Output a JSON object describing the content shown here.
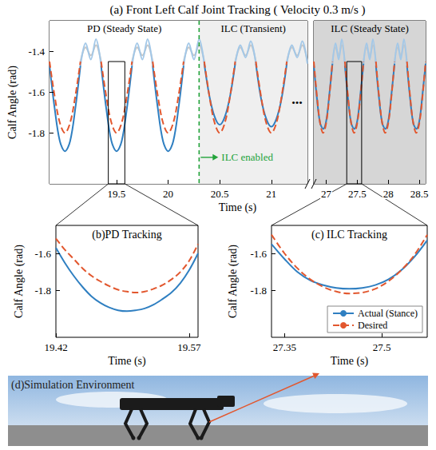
{
  "chart_data": [
    {
      "type": "line",
      "title": "(a) Front Left Calf Joint Tracking ( Velocity 0.3 m/s )",
      "x_label": "Time (s)",
      "y_label": "Calf Angle (rad)",
      "ylim": [
        -2.05,
        -1.25
      ],
      "yticks": [
        -1.8,
        -1.6,
        -1.4
      ],
      "grid": false,
      "x_segments": [
        {
          "xlim": [
            18.85,
            21.35
          ],
          "xticks": [
            19.5,
            20,
            20.5,
            21
          ],
          "x": [
            18.85,
            18.9,
            18.95,
            19,
            19.05,
            19.1,
            19.15,
            19.2,
            19.25,
            19.3,
            19.35,
            19.4,
            19.45,
            19.5,
            19.55,
            19.6,
            19.65,
            19.7,
            19.75,
            19.8,
            19.85,
            19.9,
            19.95,
            20,
            20.05,
            20.1,
            20.15,
            20.2,
            20.25,
            20.3,
            20.35,
            20.4,
            20.45,
            20.5,
            20.55,
            20.6,
            20.65,
            20.7,
            20.75,
            20.8,
            20.85,
            20.9,
            20.95,
            21,
            21.05,
            21.1,
            21.15,
            21.2,
            21.25,
            21.3,
            21.35
          ],
          "series": [
            {
              "color": "#c6c6c6",
              "line_style": "solid",
              "values": [
                null,
                null,
                null,
                null,
                null,
                null,
                -1.45,
                -1.38,
                -1.42,
                -1.37,
                -1.45,
                null,
                null,
                null,
                null,
                null,
                -1.45,
                -1.38,
                -1.42,
                -1.37,
                -1.45,
                null,
                null,
                null,
                null,
                null,
                -1.45,
                -1.38,
                -1.42,
                -1.37,
                -1.45,
                null,
                null,
                null,
                null,
                null,
                -1.45,
                -1.38,
                -1.42,
                -1.37,
                -1.45,
                null,
                null,
                null,
                null,
                null,
                -1.45,
                -1.38,
                -1.42,
                -1.37,
                -1.45
              ]
            },
            {
              "color": "#a3c8e8",
              "line_style": "solid",
              "values": [
                null,
                null,
                null,
                null,
                null,
                null,
                -1.47,
                -1.36,
                -1.44,
                -1.34,
                -1.47,
                null,
                null,
                null,
                null,
                null,
                -1.47,
                -1.36,
                -1.44,
                -1.34,
                -1.47,
                null,
                null,
                null,
                null,
                null,
                -1.47,
                -1.36,
                -1.44,
                -1.34,
                -1.46,
                null,
                null,
                null,
                null,
                null,
                -1.46,
                -1.37,
                -1.43,
                -1.35,
                -1.46,
                null,
                null,
                null,
                null,
                null,
                -1.46,
                -1.37,
                -1.43,
                -1.35,
                -1.46
              ]
            },
            {
              "name": "Actual (Stance)",
              "color": "#2f7fc1",
              "line_style": "solid",
              "values": [
                -1.47,
                -1.68,
                -1.84,
                -1.89,
                -1.84,
                -1.68,
                -1.47,
                null,
                null,
                null,
                -1.47,
                -1.68,
                -1.84,
                -1.89,
                -1.84,
                -1.68,
                -1.47,
                null,
                null,
                null,
                -1.47,
                -1.68,
                -1.84,
                -1.89,
                -1.84,
                -1.68,
                -1.47,
                null,
                null,
                null,
                -1.46,
                -1.62,
                -1.72,
                -1.76,
                -1.72,
                -1.62,
                -1.46,
                null,
                null,
                null,
                -1.46,
                -1.63,
                -1.73,
                -1.77,
                -1.73,
                -1.63,
                -1.46,
                null,
                null,
                null,
                -1.46
              ]
            },
            {
              "name": "Desired",
              "color": "#e2572e",
              "line_style": "dashed",
              "values": [
                -1.45,
                -1.62,
                -1.75,
                -1.8,
                -1.75,
                -1.62,
                -1.45,
                null,
                null,
                null,
                -1.45,
                -1.62,
                -1.75,
                -1.8,
                -1.75,
                -1.62,
                -1.45,
                null,
                null,
                null,
                -1.45,
                -1.62,
                -1.75,
                -1.8,
                -1.75,
                -1.62,
                -1.45,
                null,
                null,
                null,
                -1.45,
                -1.62,
                -1.75,
                -1.8,
                -1.75,
                -1.62,
                -1.45,
                null,
                null,
                null,
                -1.45,
                -1.62,
                -1.75,
                -1.8,
                -1.75,
                -1.62,
                -1.45,
                null,
                null,
                null,
                -1.45
              ]
            }
          ]
        },
        {
          "xlim": [
            26.8,
            28.6
          ],
          "xticks": [
            27,
            27.5,
            28,
            28.5
          ],
          "x": [
            26.8,
            26.85,
            26.9,
            26.95,
            27,
            27.05,
            27.1,
            27.15,
            27.2,
            27.25,
            27.3,
            27.35,
            27.4,
            27.45,
            27.5,
            27.55,
            27.6,
            27.65,
            27.7,
            27.75,
            27.8,
            27.85,
            27.9,
            27.95,
            28,
            28.05,
            28.1,
            28.15,
            28.2,
            28.25,
            28.3,
            28.35,
            28.4,
            28.45,
            28.5,
            28.55,
            28.6
          ],
          "series": [
            {
              "color": "#c6c6c6",
              "line_style": "solid",
              "values": [
                null,
                null,
                null,
                null,
                null,
                null,
                -1.45,
                -1.38,
                -1.42,
                -1.37,
                -1.45,
                null,
                null,
                null,
                null,
                null,
                -1.45,
                -1.38,
                -1.42,
                -1.37,
                -1.45,
                null,
                null,
                null,
                null,
                null,
                -1.45,
                -1.38,
                -1.42,
                -1.37,
                -1.45,
                null,
                null,
                null,
                null,
                null,
                null
              ]
            },
            {
              "color": "#a3c8e8",
              "line_style": "solid",
              "values": [
                null,
                null,
                null,
                null,
                null,
                null,
                -1.46,
                -1.36,
                -1.44,
                -1.34,
                -1.47,
                null,
                null,
                null,
                null,
                null,
                -1.46,
                -1.36,
                -1.44,
                -1.34,
                -1.47,
                null,
                null,
                null,
                null,
                null,
                -1.46,
                -1.36,
                -1.44,
                -1.34,
                -1.47,
                null,
                null,
                null,
                null,
                null,
                null
              ]
            },
            {
              "name": "Actual (Stance)",
              "color": "#2f7fc1",
              "line_style": "solid",
              "values": [
                -1.47,
                -1.63,
                -1.75,
                -1.78,
                -1.74,
                -1.61,
                -1.46,
                null,
                null,
                null,
                -1.47,
                -1.63,
                -1.75,
                -1.78,
                -1.74,
                -1.61,
                -1.46,
                null,
                null,
                null,
                -1.47,
                -1.63,
                -1.75,
                -1.78,
                -1.74,
                -1.61,
                -1.46,
                null,
                null,
                null,
                -1.47,
                -1.63,
                -1.75,
                -1.78,
                -1.74,
                -1.61,
                -1.46
              ]
            },
            {
              "name": "Desired",
              "color": "#e2572e",
              "line_style": "dashed",
              "values": [
                -1.45,
                -1.62,
                -1.75,
                -1.8,
                -1.75,
                -1.62,
                -1.45,
                null,
                null,
                null,
                -1.45,
                -1.62,
                -1.75,
                -1.8,
                -1.75,
                -1.62,
                -1.45,
                null,
                null,
                null,
                -1.45,
                -1.62,
                -1.75,
                -1.8,
                -1.75,
                -1.62,
                -1.45,
                null,
                null,
                null,
                -1.45,
                -1.62,
                -1.75,
                -1.8,
                -1.75,
                -1.62,
                -1.45
              ]
            }
          ]
        }
      ],
      "regions": [
        {
          "label": "PD (Steady State)",
          "from": 18.85,
          "to": 20.3,
          "color": "#ffffff"
        },
        {
          "label": "ILC (Transient)",
          "from": 20.3,
          "to": 21.35,
          "color": "#efefef"
        },
        {
          "label": "ILC (Steady State)",
          "from": 26.8,
          "to": 28.6,
          "color": "#d6d6d6"
        }
      ],
      "annotations": [
        {
          "text": "ILC enabled",
          "x": 20.3,
          "y": -1.92,
          "color": "#22a33a",
          "line_style": "dashed"
        },
        {
          "text": "•••",
          "x": 21.25,
          "y": -1.65
        }
      ]
    },
    {
      "type": "line",
      "title": "(b)PD Tracking",
      "x_label": "Time (s)",
      "y_label": "Calf Angle (rad)",
      "xlim": [
        19.42,
        19.58
      ],
      "xticks": [
        19.42,
        19.57
      ],
      "ylim": [
        -2.05,
        -1.45
      ],
      "yticks": [
        -1.8,
        -1.6
      ],
      "grid": false,
      "x": [
        19.42,
        19.43,
        19.44,
        19.45,
        19.46,
        19.47,
        19.48,
        19.49,
        19.5,
        19.51,
        19.52,
        19.53,
        19.54,
        19.55,
        19.56,
        19.57,
        19.58
      ],
      "series": [
        {
          "name": "Actual (Stance)",
          "color": "#2f7fc1",
          "line_style": "solid",
          "values": [
            -1.57,
            -1.65,
            -1.72,
            -1.78,
            -1.83,
            -1.865,
            -1.89,
            -1.905,
            -1.91,
            -1.905,
            -1.895,
            -1.875,
            -1.845,
            -1.81,
            -1.76,
            -1.69,
            -1.6
          ]
        },
        {
          "name": "Desired",
          "color": "#e2572e",
          "line_style": "dashed",
          "values": [
            -1.52,
            -1.58,
            -1.63,
            -1.68,
            -1.72,
            -1.75,
            -1.775,
            -1.795,
            -1.805,
            -1.81,
            -1.805,
            -1.79,
            -1.77,
            -1.74,
            -1.7,
            -1.64,
            -1.55
          ]
        }
      ]
    },
    {
      "type": "line",
      "title": "(c) ILC Tracking",
      "x_label": "Time (s)",
      "y_label": "Calf Angle (rad)",
      "xlim": [
        27.33,
        27.57
      ],
      "xticks": [
        27.35,
        27.5
      ],
      "ylim": [
        -2.05,
        -1.45
      ],
      "yticks": [
        -1.8,
        -1.6
      ],
      "grid": false,
      "legend": "lower right",
      "x": [
        27.33,
        27.35,
        27.37,
        27.39,
        27.41,
        27.43,
        27.45,
        27.47,
        27.49,
        27.51,
        27.53,
        27.55,
        27.57
      ],
      "series": [
        {
          "name": "Actual (Stance)",
          "color": "#2f7fc1",
          "line_style": "solid",
          "values": [
            -1.55,
            -1.63,
            -1.7,
            -1.745,
            -1.77,
            -1.785,
            -1.79,
            -1.785,
            -1.77,
            -1.74,
            -1.69,
            -1.62,
            -1.53
          ]
        },
        {
          "name": "Desired",
          "color": "#e2572e",
          "line_style": "dashed",
          "values": [
            -1.5,
            -1.6,
            -1.68,
            -1.74,
            -1.78,
            -1.805,
            -1.815,
            -1.81,
            -1.79,
            -1.75,
            -1.69,
            -1.61,
            -1.5
          ]
        }
      ]
    }
  ],
  "image_panel": {
    "title": "(d)Simulation Environment"
  }
}
